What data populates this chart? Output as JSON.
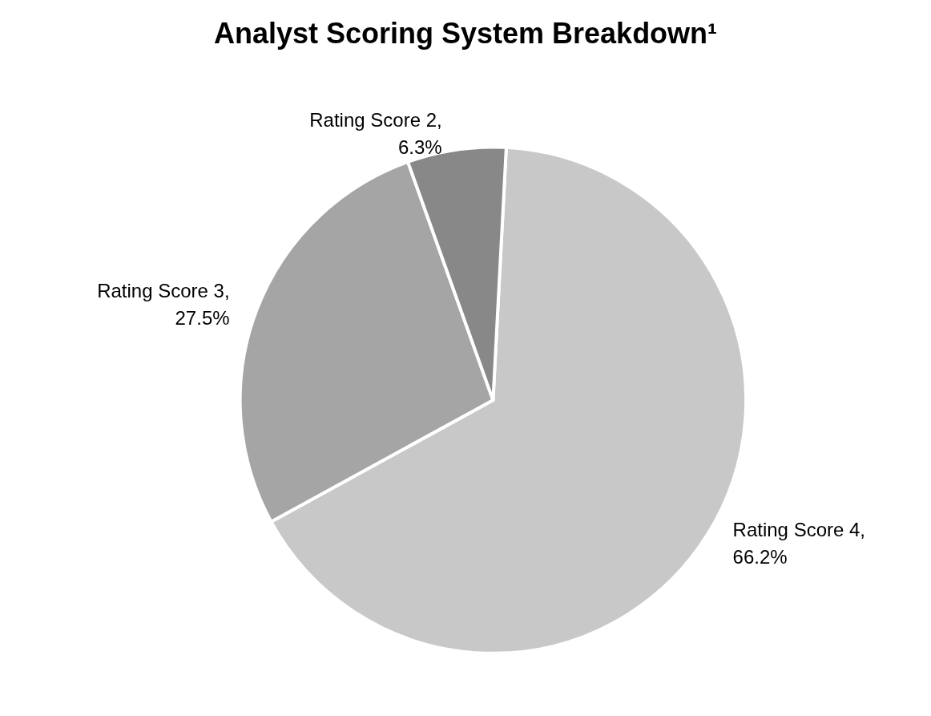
{
  "chart_data": {
    "type": "pie",
    "title": "Analyst Scoring System Breakdown¹",
    "categories": [
      "Rating Score 4",
      "Rating Score 3",
      "Rating Score 2"
    ],
    "values": [
      66.2,
      27.5,
      6.3
    ],
    "value_labels": [
      ",\n66.2%",
      ",\n27.5%",
      ",\n6.3%"
    ],
    "colors": [
      "#c8c8c8",
      "#a5a5a5",
      "#888888"
    ],
    "legend": false
  }
}
